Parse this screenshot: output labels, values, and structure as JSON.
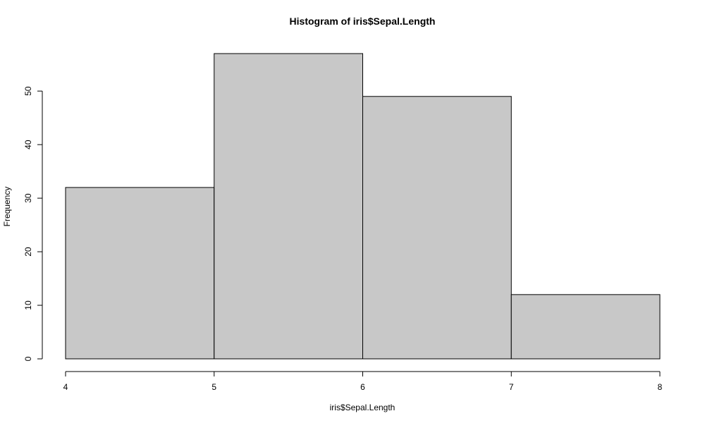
{
  "chart_data": {
    "type": "bar",
    "title": "Histogram of iris$Sepal.Length",
    "xlabel": "iris$Sepal.Length",
    "ylabel": "Frequency",
    "bins": [
      {
        "start": 4,
        "end": 5,
        "value": 32
      },
      {
        "start": 5,
        "end": 6,
        "value": 57
      },
      {
        "start": 6,
        "end": 7,
        "value": 49
      },
      {
        "start": 7,
        "end": 8,
        "value": 12
      }
    ],
    "xlim": [
      4,
      8
    ],
    "ylim": [
      0,
      57
    ],
    "xticks": [
      "4",
      "5",
      "6",
      "7",
      "8"
    ],
    "yticks": [
      "0",
      "10",
      "20",
      "30",
      "40",
      "50"
    ],
    "grid": false,
    "legend": "none",
    "colors": {
      "bar_fill": "#c8c8c8",
      "bar_stroke": "#000000"
    }
  }
}
